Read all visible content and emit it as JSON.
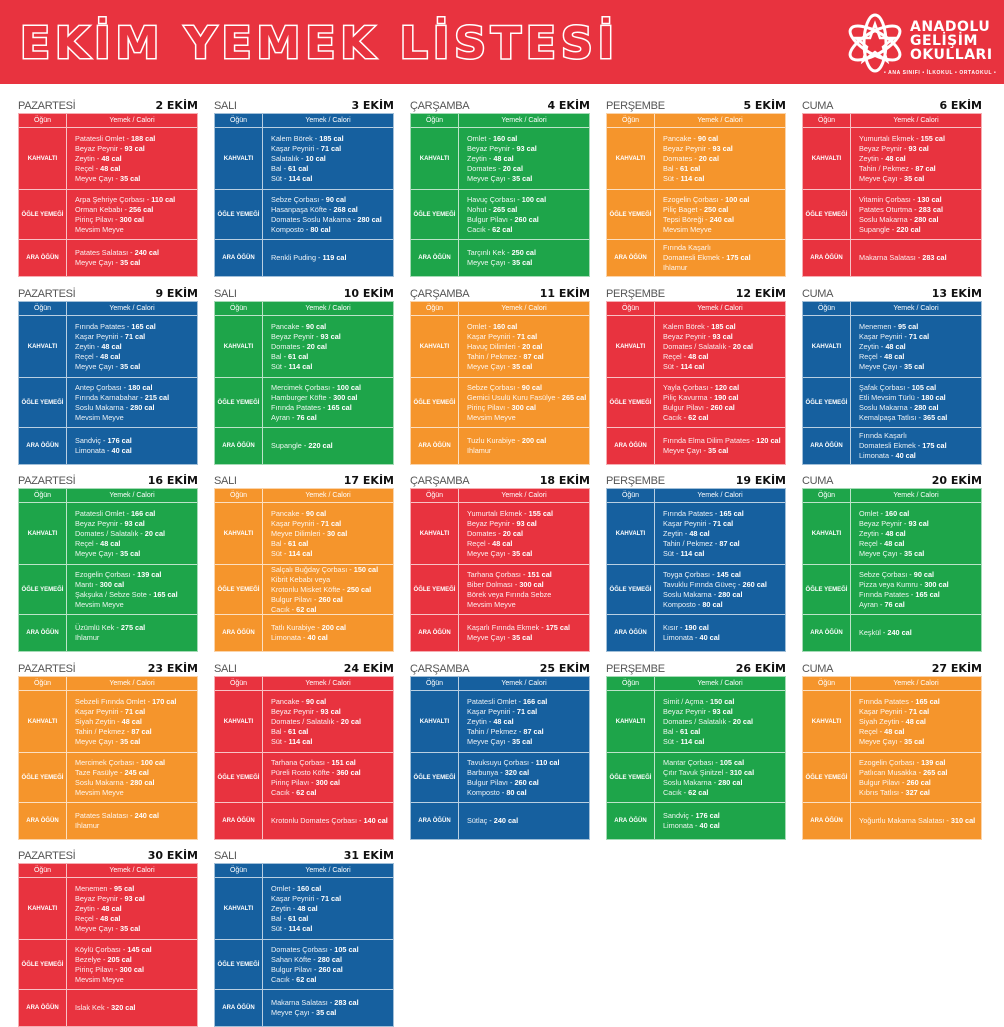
{
  "header": {
    "title": "EKİM YEMEK LİSTESİ",
    "brand": [
      "ANADOLU",
      "GELİŞİM",
      "OKULLARI"
    ],
    "tagline": "• ANA SINIFI • İLKOKUL • ORTAOKUL •",
    "logo_icon": "atom-star-icon"
  },
  "colors": {
    "red": "#e8333f",
    "blue": "#16609f",
    "green": "#1ea54a",
    "orange": "#f5952c"
  },
  "labels": {
    "col_meal": "Öğün",
    "col_food": "Yemek / Calori",
    "breakfast": "KAHVALTI",
    "lunch": "ÖĞLE YEMEĞİ",
    "snack": "ARA ÖĞÜN",
    "separator": " - "
  },
  "days": [
    {
      "day": "PAZARTESİ",
      "date": "2 EKİM",
      "color": "red",
      "k": [
        [
          "Patatesli Omlet",
          "188 cal"
        ],
        [
          "Beyaz Peynir",
          "93 cal"
        ],
        [
          "Zeytin",
          "48 cal"
        ],
        [
          "Reçel",
          "48 cal"
        ],
        [
          "Meyve Çayı",
          "35 cal"
        ]
      ],
      "o": [
        [
          "Arpa Şehriye Çorbası",
          "110 cal"
        ],
        [
          "Orman Kebabı",
          "256 cal"
        ],
        [
          "Pirinç Pilavı",
          "300 cal"
        ],
        [
          "Mevsim Meyve",
          ""
        ]
      ],
      "a": [
        [
          "Patates Salatası",
          "240 cal"
        ],
        [
          "Meyve Çayı",
          "35 cal"
        ]
      ]
    },
    {
      "day": "SALI",
      "date": "3 EKİM",
      "color": "blue",
      "k": [
        [
          "Kalem Börek",
          "185 cal"
        ],
        [
          "Kaşar Peyniri",
          "71 cal"
        ],
        [
          "Salatalık",
          "10 cal"
        ],
        [
          "Bal",
          "61 cal"
        ],
        [
          "Süt",
          "114 cal"
        ]
      ],
      "o": [
        [
          "Sebze Çorbası",
          "90 cal"
        ],
        [
          "Hasanpaşa Köfte",
          "268 cal"
        ],
        [
          "Domates Soslu Makarna",
          "280 cal"
        ],
        [
          "Komposto",
          "80 cal"
        ]
      ],
      "a": [
        [
          "Renkli Puding",
          "119 cal"
        ]
      ]
    },
    {
      "day": "ÇARŞAMBA",
      "date": "4 EKİM",
      "color": "green",
      "k": [
        [
          "Omlet",
          "160 cal"
        ],
        [
          "Beyaz Peynir",
          "93 cal"
        ],
        [
          "Zeytin",
          "48 cal"
        ],
        [
          "Domates",
          "20 cal"
        ],
        [
          "Meyve Çayı",
          "35 cal"
        ]
      ],
      "o": [
        [
          "Havuç Çorbası",
          "100 cal"
        ],
        [
          "Nohut",
          "265 cal"
        ],
        [
          "Bulgur Pilavı",
          "260 cal"
        ],
        [
          "Cacık",
          "62 cal"
        ]
      ],
      "a": [
        [
          "Tarçınlı Kek",
          "250 cal"
        ],
        [
          "Meyve Çayı",
          "35 cal"
        ]
      ]
    },
    {
      "day": "PERŞEMBE",
      "date": "5 EKİM",
      "color": "orange",
      "k": [
        [
          "Pancake",
          "90 cal"
        ],
        [
          "Beyaz Peynir",
          "93 cal"
        ],
        [
          "Domates",
          "20 cal"
        ],
        [
          "Bal",
          "61 cal"
        ],
        [
          "Süt",
          "114 cal"
        ]
      ],
      "o": [
        [
          "Ezogelin Çorbası",
          "100 cal"
        ],
        [
          "Piliç Baget",
          "250 cal"
        ],
        [
          "Tepsi Böreği",
          "240 cal"
        ],
        [
          "Mevsim Meyve",
          ""
        ]
      ],
      "a": [
        [
          "Fırında Kaşarlı",
          ""
        ],
        [
          "Domatesli Ekmek",
          "175 cal"
        ],
        [
          "Ihlamur",
          ""
        ]
      ]
    },
    {
      "day": "CUMA",
      "date": "6 EKİM",
      "color": "red",
      "k": [
        [
          "Yumurtalı Ekmek",
          "155 cal"
        ],
        [
          "Beyaz Peynir",
          "93 cal"
        ],
        [
          "Zeytin",
          "48 cal"
        ],
        [
          "Tahin / Pekmez",
          "87 cal"
        ],
        [
          "Meyve Çayı",
          "35 cal"
        ]
      ],
      "o": [
        [
          "Vitamin Çorbası",
          "130 cal"
        ],
        [
          "Patates Oturtma",
          "283 cal"
        ],
        [
          "Soslu Makarna",
          "280 cal"
        ],
        [
          "Supangle",
          "220 cal"
        ]
      ],
      "a": [
        [
          "Makarna Salatası",
          "283 cal"
        ]
      ]
    },
    {
      "day": "PAZARTESİ",
      "date": "9 EKİM",
      "color": "blue",
      "k": [
        [
          "Fırında Patates",
          "165 cal"
        ],
        [
          "Kaşar Peyniri",
          "71 cal"
        ],
        [
          "Zeytin",
          "48 cal"
        ],
        [
          "Reçel",
          "48 cal"
        ],
        [
          "Meyve Çayı",
          "35 cal"
        ]
      ],
      "o": [
        [
          "Antep Çorbası",
          "180 cal"
        ],
        [
          "Fırında Karnabahar",
          "215 cal"
        ],
        [
          "Soslu Makarna",
          "280 cal"
        ],
        [
          "Mevsim Meyve",
          ""
        ]
      ],
      "a": [
        [
          "Sandviç",
          "176 cal"
        ],
        [
          "Limonata",
          "40 cal"
        ]
      ]
    },
    {
      "day": "SALI",
      "date": "10 EKİM",
      "color": "green",
      "k": [
        [
          "Pancake",
          "90 cal"
        ],
        [
          "Beyaz Peynir",
          "93 cal"
        ],
        [
          "Domates",
          "20 cal"
        ],
        [
          "Bal",
          "61 cal"
        ],
        [
          "Süt",
          "114 cal"
        ]
      ],
      "o": [
        [
          "Mercimek Çorbası",
          "100 cal"
        ],
        [
          "Hamburger Köfte",
          "300 cal"
        ],
        [
          "Fırında Patates",
          "165 cal"
        ],
        [
          "Ayran",
          "76 cal"
        ]
      ],
      "a": [
        [
          "Supangle",
          "220 cal"
        ]
      ]
    },
    {
      "day": "ÇARŞAMBA",
      "date": "11 EKİM",
      "color": "orange",
      "k": [
        [
          "Omlet",
          "160 cal"
        ],
        [
          "Kaşar Peyniri",
          "71 cal"
        ],
        [
          "Havuç Dilimleri",
          "20 cal"
        ],
        [
          "Tahin / Pekmez",
          "87 cal"
        ],
        [
          "Meyve Çayı",
          "35 cal"
        ]
      ],
      "o": [
        [
          "Sebze Çorbası",
          "90 cal"
        ],
        [
          "Gemici Usulü Kuru Fasülye",
          "265 cal"
        ],
        [
          "Pirinç Pilavı",
          "300 cal"
        ],
        [
          "Mevsim Meyve",
          ""
        ]
      ],
      "a": [
        [
          "Tuzlu Kurabiye",
          "200 cal"
        ],
        [
          "Ihlamur",
          ""
        ]
      ]
    },
    {
      "day": "PERŞEMBE",
      "date": "12 EKİM",
      "color": "red",
      "k": [
        [
          "Kalem Börek",
          "185 cal"
        ],
        [
          "Beyaz Peynir",
          "93 cal"
        ],
        [
          "Domates / Salatalık",
          "20 cal"
        ],
        [
          "Reçel",
          "48 cal"
        ],
        [
          "Süt",
          "114 cal"
        ]
      ],
      "o": [
        [
          "Yayla Çorbası",
          "120 cal"
        ],
        [
          "Piliç Kavurma",
          "190 cal"
        ],
        [
          "Bulgur Pilavı",
          "260 cal"
        ],
        [
          "Cacık",
          "62 cal"
        ]
      ],
      "a": [
        [
          "Fırında Elma Dilim Patates",
          "120 cal"
        ],
        [
          "Meyve Çayı",
          "35 cal"
        ]
      ]
    },
    {
      "day": "CUMA",
      "date": "13 EKİM",
      "color": "blue",
      "k": [
        [
          "Menemen",
          "95 cal"
        ],
        [
          "Kaşar Peyniri",
          "71 cal"
        ],
        [
          "Zeytin",
          "48 cal"
        ],
        [
          "Reçel",
          "48 cal"
        ],
        [
          "Meyve Çayı",
          "35 cal"
        ]
      ],
      "o": [
        [
          "Şafak Çorbası",
          "105 cal"
        ],
        [
          "Etli Mevsim Türlü",
          "180 cal"
        ],
        [
          "Soslu Makarna",
          "280 cal"
        ],
        [
          "Kemalpaşa Tatlısı",
          "365 cal"
        ]
      ],
      "a": [
        [
          "Fırında Kaşarlı",
          ""
        ],
        [
          "Domatesli Ekmek",
          "175 cal"
        ],
        [
          "Limonata",
          "40 cal"
        ]
      ]
    },
    {
      "day": "PAZARTESİ",
      "date": "16 EKİM",
      "color": "green",
      "k": [
        [
          "Patatesli Omlet",
          "166 cal"
        ],
        [
          "Beyaz Peynir",
          "93 cal"
        ],
        [
          "Domates / Salatalık",
          "20 cal"
        ],
        [
          "Reçel",
          "48 cal"
        ],
        [
          "Meyve Çayı",
          "35 cal"
        ]
      ],
      "o": [
        [
          "Ezogelin Çorbası",
          "139 cal"
        ],
        [
          "Mantı",
          "300 cal"
        ],
        [
          "Şakşuka / Sebze Sote",
          "165 cal"
        ],
        [
          "Mevsim Meyve",
          ""
        ]
      ],
      "a": [
        [
          "Üzümlü Kek",
          "275 cal"
        ],
        [
          "Ihlamur",
          ""
        ]
      ]
    },
    {
      "day": "SALI",
      "date": "17 EKİM",
      "color": "orange",
      "k": [
        [
          "Pancake",
          "90 cal"
        ],
        [
          "Kaşar Peyniri",
          "71 cal"
        ],
        [
          "Meyve Dilimleri",
          "30 cal"
        ],
        [
          "Bal",
          "61 cal"
        ],
        [
          "Süt",
          "114 cal"
        ]
      ],
      "o": [
        [
          "Salçalı Buğday Çorbası",
          "150 cal"
        ],
        [
          "Kibrit Kebabı veya",
          ""
        ],
        [
          "Krotonlu Misket Köfte",
          "250 cal"
        ],
        [
          "Bulgur Pilavı",
          "260 cal"
        ],
        [
          "Cacık",
          "62 cal"
        ]
      ],
      "a": [
        [
          "Tatlı Kurabiye",
          "200 cal"
        ],
        [
          "Limonata",
          "40 cal"
        ]
      ]
    },
    {
      "day": "ÇARŞAMBA",
      "date": "18 EKİM",
      "color": "red",
      "k": [
        [
          "Yumurtalı Ekmek",
          "155 cal"
        ],
        [
          "Beyaz Peynir",
          "93 cal"
        ],
        [
          "Domates",
          "20 cal"
        ],
        [
          "Reçel",
          "48 cal"
        ],
        [
          "Meyve Çayı",
          "35 cal"
        ]
      ],
      "o": [
        [
          "Tarhana Çorbası",
          "151 cal"
        ],
        [
          "Biber Dolması",
          "300 cal"
        ],
        [
          "Börek veya Fırında Sebze",
          ""
        ],
        [
          "Mevsim Meyve",
          ""
        ]
      ],
      "a": [
        [
          "Kaşarlı Fırında Ekmek",
          "175 cal"
        ],
        [
          "Meyve Çayı",
          "35 cal"
        ]
      ]
    },
    {
      "day": "PERŞEMBE",
      "date": "19 EKİM",
      "color": "blue",
      "k": [
        [
          "Fırında Patates",
          "165 cal"
        ],
        [
          "Kaşar Peyniri",
          "71 cal"
        ],
        [
          "Zeytin",
          "48 cal"
        ],
        [
          "Tahin / Pekmez",
          "87 cal"
        ],
        [
          "Süt",
          "114 cal"
        ]
      ],
      "o": [
        [
          "Toyga Çorbası",
          "145 cal"
        ],
        [
          "Tavuklu Fırında Güveç",
          "260 cal"
        ],
        [
          "Soslu Makarna",
          "280 cal"
        ],
        [
          "Komposto",
          "80 cal"
        ]
      ],
      "a": [
        [
          "Kısır",
          "190 cal"
        ],
        [
          "Limonata",
          "40 cal"
        ]
      ]
    },
    {
      "day": "CUMA",
      "date": "20 EKİM",
      "color": "green",
      "k": [
        [
          "Omlet",
          "160 cal"
        ],
        [
          "Beyaz Peynir",
          "93 cal"
        ],
        [
          "Zeytin",
          "48 cal"
        ],
        [
          "Reçel",
          "48 cal"
        ],
        [
          "Meyve Çayı",
          "35 cal"
        ]
      ],
      "o": [
        [
          "Sebze Çorbası",
          "90 cal"
        ],
        [
          "Pizza veya Kumru",
          "300 cal"
        ],
        [
          "Fırında Patates",
          "165 cal"
        ],
        [
          "Ayran",
          "76 cal"
        ]
      ],
      "a": [
        [
          "Keşkül",
          "240 cal"
        ]
      ]
    },
    {
      "day": "PAZARTESİ",
      "date": "23 EKİM",
      "color": "orange",
      "k": [
        [
          "Sebzeli Fırında Omlet",
          "170 cal"
        ],
        [
          "Kaşar Peyniri",
          "71 cal"
        ],
        [
          "Siyah Zeytin",
          "48 cal"
        ],
        [
          "Tahin / Pekmez",
          "87 cal"
        ],
        [
          "Meyve Çayı",
          "35 cal"
        ]
      ],
      "o": [
        [
          "Mercimek Çorbası",
          "100 cal"
        ],
        [
          "Taze Fasülye",
          "245 cal"
        ],
        [
          "Soslu Makarna",
          "280 cal"
        ],
        [
          "Mevsim Meyve",
          ""
        ]
      ],
      "a": [
        [
          "Patates Salatası",
          "240 cal"
        ],
        [
          "Ihlamur",
          ""
        ]
      ]
    },
    {
      "day": "SALI",
      "date": "24 EKİM",
      "color": "red",
      "k": [
        [
          "Pancake",
          "90 cal"
        ],
        [
          "Beyaz Peynir",
          "93 cal"
        ],
        [
          "Domates / Salatalık",
          "20 cal"
        ],
        [
          "Bal",
          "61 cal"
        ],
        [
          "Süt",
          "114 cal"
        ]
      ],
      "o": [
        [
          "Tarhana Çorbası",
          "151 cal"
        ],
        [
          "Püreli Rosto Köfte",
          "360 cal"
        ],
        [
          "Pirinç Pilavı",
          "300 cal"
        ],
        [
          "Cacık",
          "62 cal"
        ]
      ],
      "a": [
        [
          "Krotonlu Domates Çorbası",
          "140 cal"
        ]
      ]
    },
    {
      "day": "ÇARŞAMBA",
      "date": "25 EKİM",
      "color": "blue",
      "k": [
        [
          "Patatesli Omlet",
          "166 cal"
        ],
        [
          "Kaşar Peyniri",
          "71 cal"
        ],
        [
          "Zeytin",
          "48 cal"
        ],
        [
          "Tahin / Pekmez",
          "87 cal"
        ],
        [
          "Meyve Çayı",
          "35 cal"
        ]
      ],
      "o": [
        [
          "Tavuksuyu Çorbası",
          "110 cal"
        ],
        [
          "Barbunya",
          "320 cal"
        ],
        [
          "Bulgur Pilavı",
          "260 cal"
        ],
        [
          "Komposto",
          "80 cal"
        ]
      ],
      "a": [
        [
          "Sütlaç",
          "240 cal"
        ]
      ]
    },
    {
      "day": "PERŞEMBE",
      "date": "26 EKİM",
      "color": "green",
      "k": [
        [
          "Simit / Açma",
          "150 cal"
        ],
        [
          "Beyaz Peynir",
          "93 cal"
        ],
        [
          "Domates / Salatalık",
          "20 cal"
        ],
        [
          "Bal",
          "61 cal"
        ],
        [
          "Süt",
          "114 cal"
        ]
      ],
      "o": [
        [
          "Mantar Çorbası",
          "105 cal"
        ],
        [
          "Çıtır Tavuk Şinitzel",
          "310 cal"
        ],
        [
          "Soslu Makarna",
          "280 cal"
        ],
        [
          "Cacık",
          "62 cal"
        ]
      ],
      "a": [
        [
          "Sandviç",
          "176 cal"
        ],
        [
          "Limonata",
          "40 cal"
        ]
      ]
    },
    {
      "day": "CUMA",
      "date": "27 EKİM",
      "color": "orange",
      "k": [
        [
          "Fırında Patates",
          "165 cal"
        ],
        [
          "Kaşar Peyniri",
          "71 cal"
        ],
        [
          "Siyah Zeytin",
          "48 cal"
        ],
        [
          "Reçel",
          "48 cal"
        ],
        [
          "Meyve Çayı",
          "35 cal"
        ]
      ],
      "o": [
        [
          "Ezogelin Çorbası",
          "139 cal"
        ],
        [
          "Patlıcan Musakka",
          "265 cal"
        ],
        [
          "Bulgur Pilavı",
          "260 cal"
        ],
        [
          "Kıbrıs Tatlısı",
          "327 cal"
        ]
      ],
      "a": [
        [
          "Yoğurtlu Makarna Salatası",
          "310 cal"
        ]
      ]
    },
    {
      "day": "PAZARTESİ",
      "date": "30 EKİM",
      "color": "red",
      "k": [
        [
          "Menemen",
          "95 cal"
        ],
        [
          "Beyaz Peynir",
          "93 cal"
        ],
        [
          "Zeytin",
          "48 cal"
        ],
        [
          "Reçel",
          "48 cal"
        ],
        [
          "Meyve Çayı",
          "35 cal"
        ]
      ],
      "o": [
        [
          "Köylü Çorbası",
          "145 cal"
        ],
        [
          "Bezelye",
          "205 cal"
        ],
        [
          "Pirinç Pilavı",
          "300 cal"
        ],
        [
          "Mevsim Meyve",
          ""
        ]
      ],
      "a": [
        [
          "Islak Kek",
          "320 cal"
        ]
      ]
    },
    {
      "day": "SALI",
      "date": "31 EKİM",
      "color": "blue",
      "k": [
        [
          "Omlet",
          "160 cal"
        ],
        [
          "Kaşar Peyniri",
          "71 cal"
        ],
        [
          "Zeytin",
          "48 cal"
        ],
        [
          "Bal",
          "61 cal"
        ],
        [
          "Süt",
          "114 cal"
        ]
      ],
      "o": [
        [
          "Domates Çorbası",
          "105 cal"
        ],
        [
          "Sahan Köfte",
          "280 cal"
        ],
        [
          "Bulgur Pilavı",
          "260 cal"
        ],
        [
          "Cacık",
          "62 cal"
        ]
      ],
      "a": [
        [
          "Makarna Salatası",
          "283 cal"
        ],
        [
          "Meyve Çayı",
          "35 cal"
        ]
      ]
    }
  ]
}
